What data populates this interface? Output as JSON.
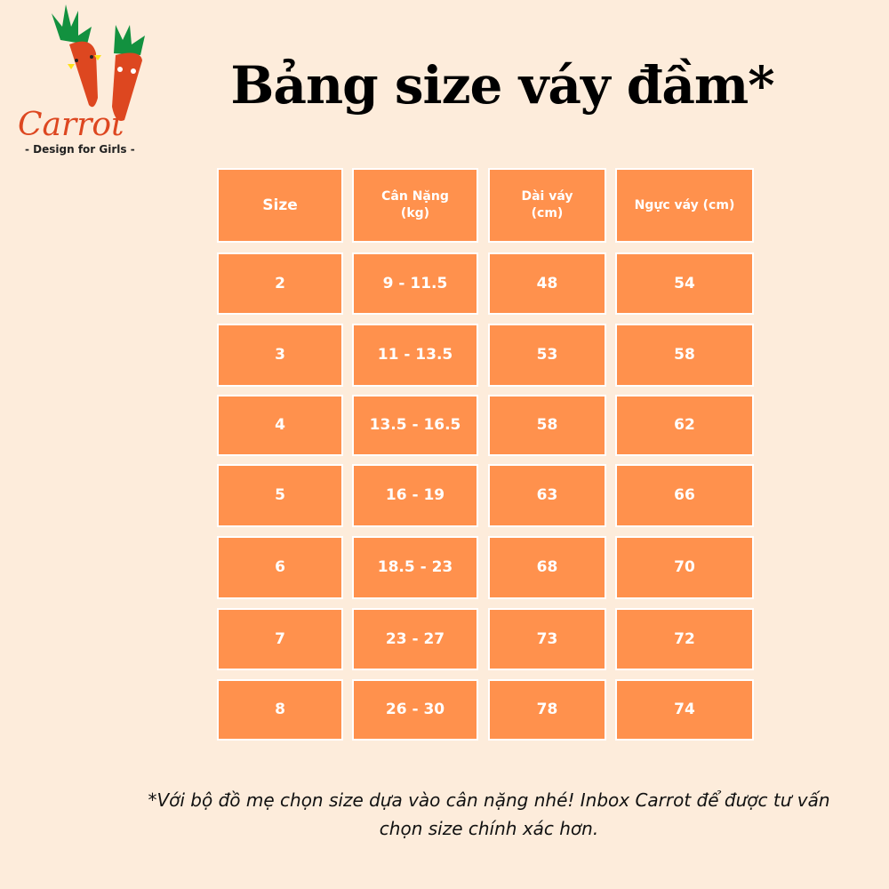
{
  "logo": {
    "brand": "Carrot",
    "tagline": "- Design for Girls -"
  },
  "title": "Bảng size váy đầm*",
  "colors": {
    "background": "#fdecdb",
    "cell": "#ff914d",
    "border": "#ffffff"
  },
  "table": {
    "headers": [
      "Size",
      "Cân Nặng\n(kg)",
      "Dài váy\n(cm)",
      "Ngực váy (cm)"
    ],
    "rows": [
      [
        "2",
        "9 - 11.5",
        "48",
        "54"
      ],
      [
        "3",
        "11 - 13.5",
        "53",
        "58"
      ],
      [
        "4",
        "13.5 - 16.5",
        "58",
        "62"
      ],
      [
        "5",
        "16 - 19",
        "63",
        "66"
      ],
      [
        "6",
        "18.5 - 23",
        "68",
        "70"
      ],
      [
        "7",
        "23 - 27",
        "73",
        "72"
      ],
      [
        "8",
        "26 - 30",
        "78",
        "74"
      ]
    ]
  },
  "note": "*Với bộ đồ mẹ chọn size dựa vào cân nặng nhé! Inbox Carrot để được tư vấn chọn size chính xác hơn."
}
